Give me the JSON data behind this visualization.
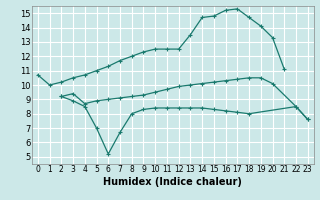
{
  "xlabel": "Humidex (Indice chaleur)",
  "xlim": [
    -0.5,
    23.5
  ],
  "ylim": [
    4.5,
    15.5
  ],
  "xticks": [
    0,
    1,
    2,
    3,
    4,
    5,
    6,
    7,
    8,
    9,
    10,
    11,
    12,
    13,
    14,
    15,
    16,
    17,
    18,
    19,
    20,
    21,
    22,
    23
  ],
  "yticks": [
    5,
    6,
    7,
    8,
    9,
    10,
    11,
    12,
    13,
    14,
    15
  ],
  "bg_color": "#cce8e8",
  "line_color": "#1a7a6e",
  "grid_color": "#ffffff",
  "line1_x": [
    0,
    1,
    2,
    3,
    4,
    5,
    6,
    7,
    8,
    9,
    10,
    11,
    12,
    13,
    14,
    15,
    16,
    17,
    18,
    19,
    20,
    21
  ],
  "line1_y": [
    10.7,
    10.0,
    10.2,
    10.5,
    10.7,
    11.0,
    11.3,
    11.7,
    12.0,
    12.3,
    12.5,
    12.5,
    12.5,
    13.5,
    14.7,
    14.8,
    15.2,
    15.3,
    14.7,
    14.1,
    13.3,
    11.1
  ],
  "line2_x": [
    2,
    3,
    4,
    5,
    6,
    7,
    8,
    9,
    10,
    11,
    12,
    13,
    14,
    15,
    16,
    17,
    18,
    19,
    20,
    22,
    23
  ],
  "line2_y": [
    9.2,
    9.4,
    8.7,
    8.9,
    9.0,
    9.1,
    9.2,
    9.3,
    9.5,
    9.7,
    9.9,
    10.0,
    10.1,
    10.2,
    10.3,
    10.4,
    10.5,
    10.5,
    10.1,
    8.5,
    7.6
  ],
  "line3_x": [
    2,
    3,
    4,
    5,
    6,
    7,
    8,
    9,
    10,
    11,
    12,
    13,
    14,
    15,
    16,
    17,
    18,
    22,
    23
  ],
  "line3_y": [
    9.2,
    8.9,
    8.5,
    7.0,
    5.2,
    6.7,
    8.0,
    8.3,
    8.4,
    8.4,
    8.4,
    8.4,
    8.4,
    8.3,
    8.2,
    8.1,
    8.0,
    8.5,
    7.6
  ]
}
